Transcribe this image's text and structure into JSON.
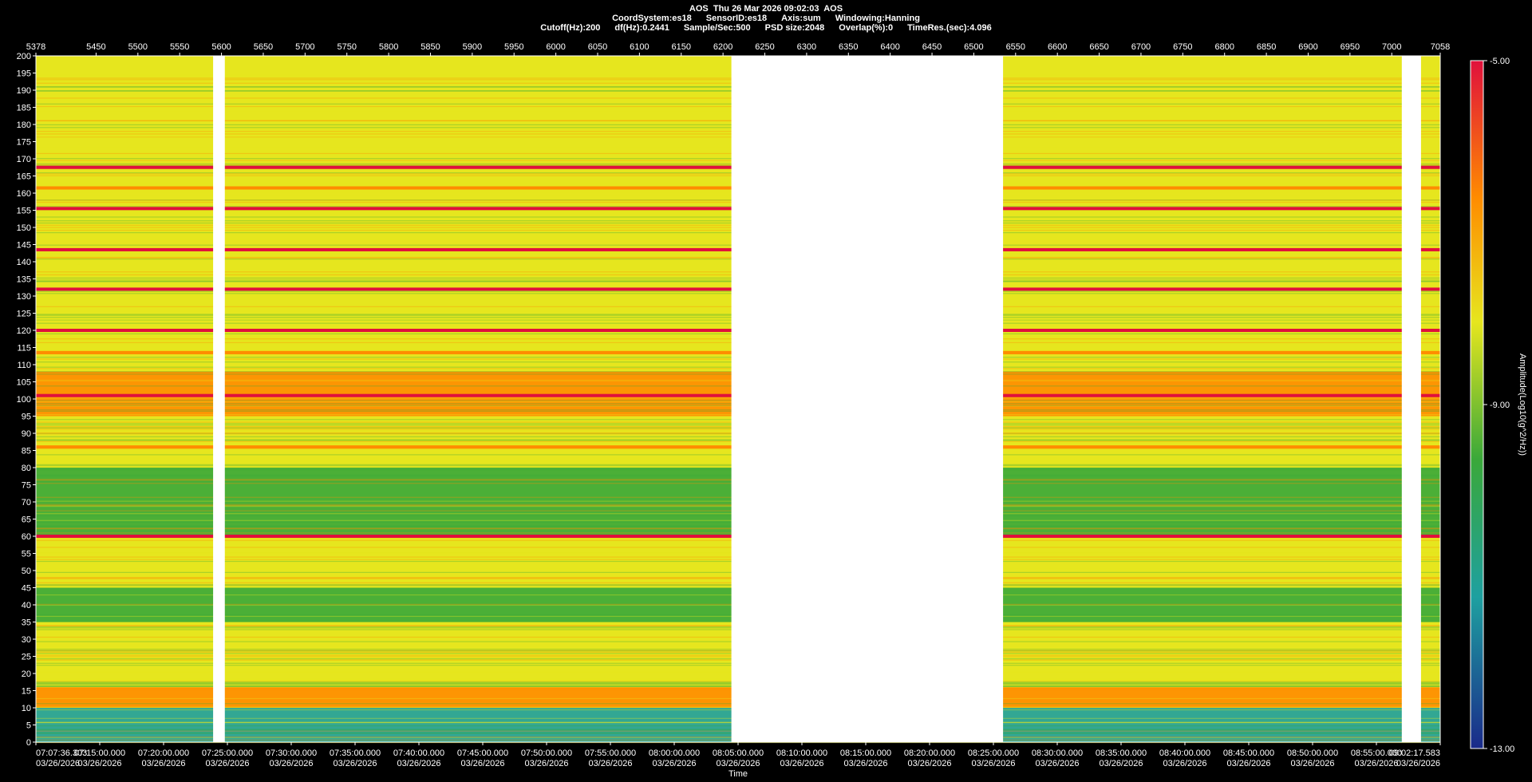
{
  "header": {
    "line1": "AOS  Thu 26 Mar 2026 09:02:03  AOS",
    "line2": [
      "CoordSystem:es18",
      "SensorID:es18",
      "Axis:sum",
      "Windowing:Hanning"
    ],
    "line3": [
      "Cutoff(Hz):200",
      "df(Hz):0.2441",
      "Sample/Sec:500",
      "PSD size:2048",
      "Overlap(%):0",
      "TimeRes.(sec):4.096"
    ]
  },
  "chart_data": {
    "type": "heatmap",
    "title": "AOS  Thu 26 Mar 2026 09:02:03  AOS",
    "xlabel": "Time",
    "ylabel": "",
    "colorbar_label": "Amplitude(Log10(g^2/Hz))",
    "colorbar_ticks": [
      "-5.00",
      "-9.00",
      "-13.00"
    ],
    "colorbar_range": [
      -13,
      -5
    ],
    "colors": {
      "low": "#1a2a8a",
      "mid_low": "#1ea0a0",
      "mid": "#3aa83a",
      "mid_high": "#e6e61e",
      "high": "#ff8c00",
      "max": "#e0103c",
      "gap": "#ffffff",
      "background": "#000000"
    },
    "ylim": [
      0,
      200
    ],
    "y_ticks": [
      200,
      195,
      190,
      185,
      180,
      175,
      170,
      165,
      160,
      155,
      150,
      145,
      140,
      135,
      130,
      125,
      120,
      115,
      110,
      105,
      100,
      95,
      90,
      85,
      80,
      75,
      70,
      65,
      60,
      55,
      50,
      45,
      40,
      35,
      30,
      25,
      20,
      15,
      10,
      5,
      0
    ],
    "top_axis_range": [
      5378,
      7058
    ],
    "top_ticks": [
      "5378",
      "5450",
      "5500",
      "5550",
      "5600",
      "5650",
      "5700",
      "5750",
      "5800",
      "5850",
      "5900",
      "5950",
      "6000",
      "6050",
      "6100",
      "6150",
      "6200",
      "6250",
      "6300",
      "6350",
      "6400",
      "6450",
      "6500",
      "6550",
      "6600",
      "6650",
      "6700",
      "6750",
      "6800",
      "6850",
      "6900",
      "6950",
      "7000",
      "7058"
    ],
    "bottom_ticks": [
      {
        "time": "07:07:36.303",
        "date": "03/26/2026"
      },
      {
        "time": "07:15:00.000",
        "date": "03/26/2026"
      },
      {
        "time": "07:20:00.000",
        "date": "03/26/2026"
      },
      {
        "time": "07:25:00.000",
        "date": "03/26/2026"
      },
      {
        "time": "07:30:00.000",
        "date": "03/26/2026"
      },
      {
        "time": "07:35:00.000",
        "date": "03/26/2026"
      },
      {
        "time": "07:40:00.000",
        "date": "03/26/2026"
      },
      {
        "time": "07:45:00.000",
        "date": "03/26/2026"
      },
      {
        "time": "07:50:00.000",
        "date": "03/26/2026"
      },
      {
        "time": "07:55:00.000",
        "date": "03/26/2026"
      },
      {
        "time": "08:00:00.000",
        "date": "03/26/2026"
      },
      {
        "time": "08:05:00.000",
        "date": "03/26/2026"
      },
      {
        "time": "08:10:00.000",
        "date": "03/26/2026"
      },
      {
        "time": "08:15:00.000",
        "date": "03/26/2026"
      },
      {
        "time": "08:20:00.000",
        "date": "03/26/2026"
      },
      {
        "time": "08:25:00.000",
        "date": "03/26/2026"
      },
      {
        "time": "08:30:00.000",
        "date": "03/26/2026"
      },
      {
        "time": "08:35:00.000",
        "date": "03/26/2026"
      },
      {
        "time": "08:40:00.000",
        "date": "03/26/2026"
      },
      {
        "time": "08:45:00.000",
        "date": "03/26/2026"
      },
      {
        "time": "08:50:00.000",
        "date": "03/26/2026"
      },
      {
        "time": "08:55:00.000",
        "date": "03/26/2026"
      },
      {
        "time": "09:02:17.583",
        "date": "03/26/2026"
      }
    ],
    "data_gaps_top_axis": [
      [
        5590,
        5604
      ],
      [
        6210,
        6535
      ],
      [
        7012,
        7035
      ]
    ],
    "strong_lines_hz": [
      {
        "hz": 167.5,
        "level": "max"
      },
      {
        "hz": 161.5,
        "level": "high"
      },
      {
        "hz": 155.5,
        "level": "max"
      },
      {
        "hz": 143.5,
        "level": "max"
      },
      {
        "hz": 132,
        "level": "max"
      },
      {
        "hz": 120,
        "level": "max"
      },
      {
        "hz": 113.5,
        "level": "high"
      },
      {
        "hz": 101,
        "level": "max"
      },
      {
        "hz": 86,
        "level": "high"
      },
      {
        "hz": 60,
        "level": "max"
      }
    ],
    "band_levels": [
      {
        "from": 0,
        "to": 10,
        "level": "mid_low"
      },
      {
        "from": 10,
        "to": 16,
        "level": "high"
      },
      {
        "from": 16,
        "to": 35,
        "level": "mid_high"
      },
      {
        "from": 35,
        "to": 45,
        "level": "mid"
      },
      {
        "from": 45,
        "to": 60,
        "level": "mid_high"
      },
      {
        "from": 60,
        "to": 80,
        "level": "mid"
      },
      {
        "from": 80,
        "to": 95,
        "level": "mid_high"
      },
      {
        "from": 95,
        "to": 108,
        "level": "high"
      },
      {
        "from": 108,
        "to": 200,
        "level": "mid_high"
      }
    ],
    "grid": false,
    "legend": "right"
  }
}
